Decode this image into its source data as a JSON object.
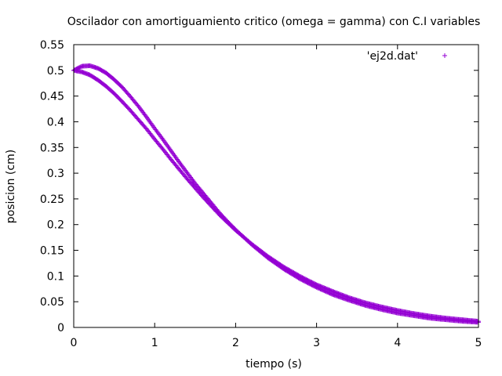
{
  "chart_data": {
    "type": "scatter",
    "title": "Oscilador con amortiguamiento critico (omega = gamma) con C.I variables",
    "xlabel": "tiempo (s)",
    "ylabel": "posicion (cm)",
    "xlim": [
      0,
      5
    ],
    "ylim": [
      0,
      0.55
    ],
    "x_ticks": [
      "0",
      "1",
      "2",
      "3",
      "4",
      "5"
    ],
    "y_ticks": [
      "0",
      "0.05",
      "0.1",
      "0.15",
      "0.2",
      "0.25",
      "0.3",
      "0.35",
      "0.4",
      "0.45",
      "0.5",
      "0.55"
    ],
    "grid": false,
    "legend_position": "top-right",
    "marker": "plus",
    "color": "#9400d3",
    "series": [
      {
        "name": "'ej2d.dat'",
        "points": [
          [
            0.0,
            0.5
          ],
          [
            0.1,
            0.508
          ],
          [
            0.2,
            0.509
          ],
          [
            0.3,
            0.504
          ],
          [
            0.4,
            0.495
          ],
          [
            0.5,
            0.482
          ],
          [
            0.6,
            0.467
          ],
          [
            0.7,
            0.449
          ],
          [
            0.8,
            0.43
          ],
          [
            0.9,
            0.409
          ],
          [
            1.0,
            0.387
          ],
          [
            1.1,
            0.366
          ],
          [
            1.2,
            0.344
          ],
          [
            1.3,
            0.322
          ],
          [
            1.4,
            0.301
          ],
          [
            1.5,
            0.28
          ],
          [
            1.6,
            0.261
          ],
          [
            1.7,
            0.242
          ],
          [
            1.8,
            0.223
          ],
          [
            1.9,
            0.206
          ],
          [
            2.0,
            0.19
          ],
          [
            2.2,
            0.161
          ],
          [
            2.4,
            0.135
          ],
          [
            2.6,
            0.113
          ],
          [
            2.8,
            0.094
          ],
          [
            3.0,
            0.078
          ],
          [
            3.2,
            0.064
          ],
          [
            3.4,
            0.053
          ],
          [
            3.6,
            0.043
          ],
          [
            3.8,
            0.035
          ],
          [
            4.0,
            0.028
          ],
          [
            4.2,
            0.023
          ],
          [
            4.4,
            0.018
          ],
          [
            4.6,
            0.015
          ],
          [
            4.8,
            0.012
          ],
          [
            5.0,
            0.01
          ],
          [
            0.0,
            0.5
          ],
          [
            0.1,
            0.497
          ],
          [
            0.2,
            0.491
          ],
          [
            0.3,
            0.481
          ],
          [
            0.4,
            0.469
          ],
          [
            0.5,
            0.455
          ],
          [
            0.6,
            0.439
          ],
          [
            0.7,
            0.422
          ],
          [
            0.8,
            0.404
          ],
          [
            0.9,
            0.386
          ],
          [
            1.0,
            0.366
          ],
          [
            1.1,
            0.347
          ],
          [
            1.2,
            0.327
          ],
          [
            1.3,
            0.308
          ],
          [
            1.4,
            0.289
          ],
          [
            1.5,
            0.271
          ],
          [
            1.6,
            0.253
          ],
          [
            1.7,
            0.236
          ],
          [
            1.8,
            0.219
          ],
          [
            1.9,
            0.204
          ],
          [
            2.0,
            0.189
          ],
          [
            2.2,
            0.162
          ],
          [
            2.4,
            0.138
          ],
          [
            2.6,
            0.117
          ],
          [
            2.8,
            0.099
          ],
          [
            3.0,
            0.083
          ],
          [
            3.2,
            0.07
          ],
          [
            3.4,
            0.058
          ],
          [
            3.6,
            0.048
          ],
          [
            3.8,
            0.04
          ],
          [
            4.0,
            0.033
          ],
          [
            4.2,
            0.027
          ],
          [
            4.4,
            0.022
          ],
          [
            4.6,
            0.018
          ],
          [
            4.8,
            0.015
          ],
          [
            5.0,
            0.012
          ]
        ]
      }
    ]
  }
}
